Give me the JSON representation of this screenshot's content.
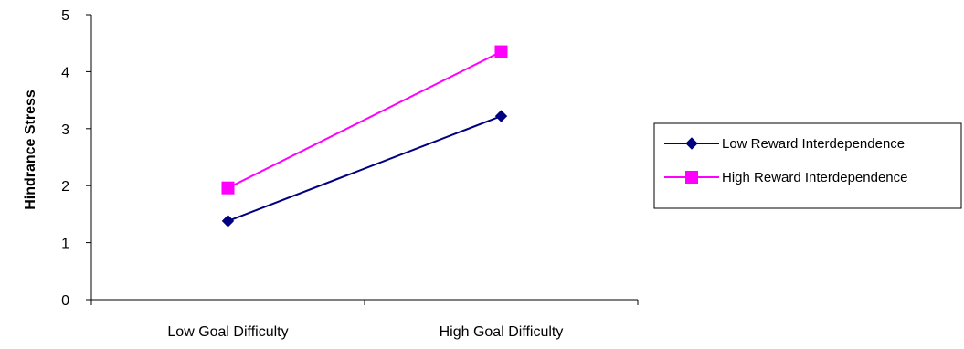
{
  "chart_data": {
    "type": "line",
    "title": "",
    "xlabel": "",
    "ylabel": "Hindrance Stress",
    "categories": [
      "Low Goal Difficulty",
      "High Goal Difficulty"
    ],
    "ylim": [
      0,
      5
    ],
    "yticks": [
      0,
      1,
      2,
      3,
      4,
      5
    ],
    "grid": false,
    "legend_position": "right",
    "series": [
      {
        "name": "Low Reward Interdependence",
        "values": [
          1.38,
          3.22
        ],
        "color": "#000080",
        "marker": "diamond"
      },
      {
        "name": "High Reward Interdependence",
        "values": [
          1.96,
          4.35
        ],
        "color": "#ff00ff",
        "marker": "square"
      }
    ]
  }
}
